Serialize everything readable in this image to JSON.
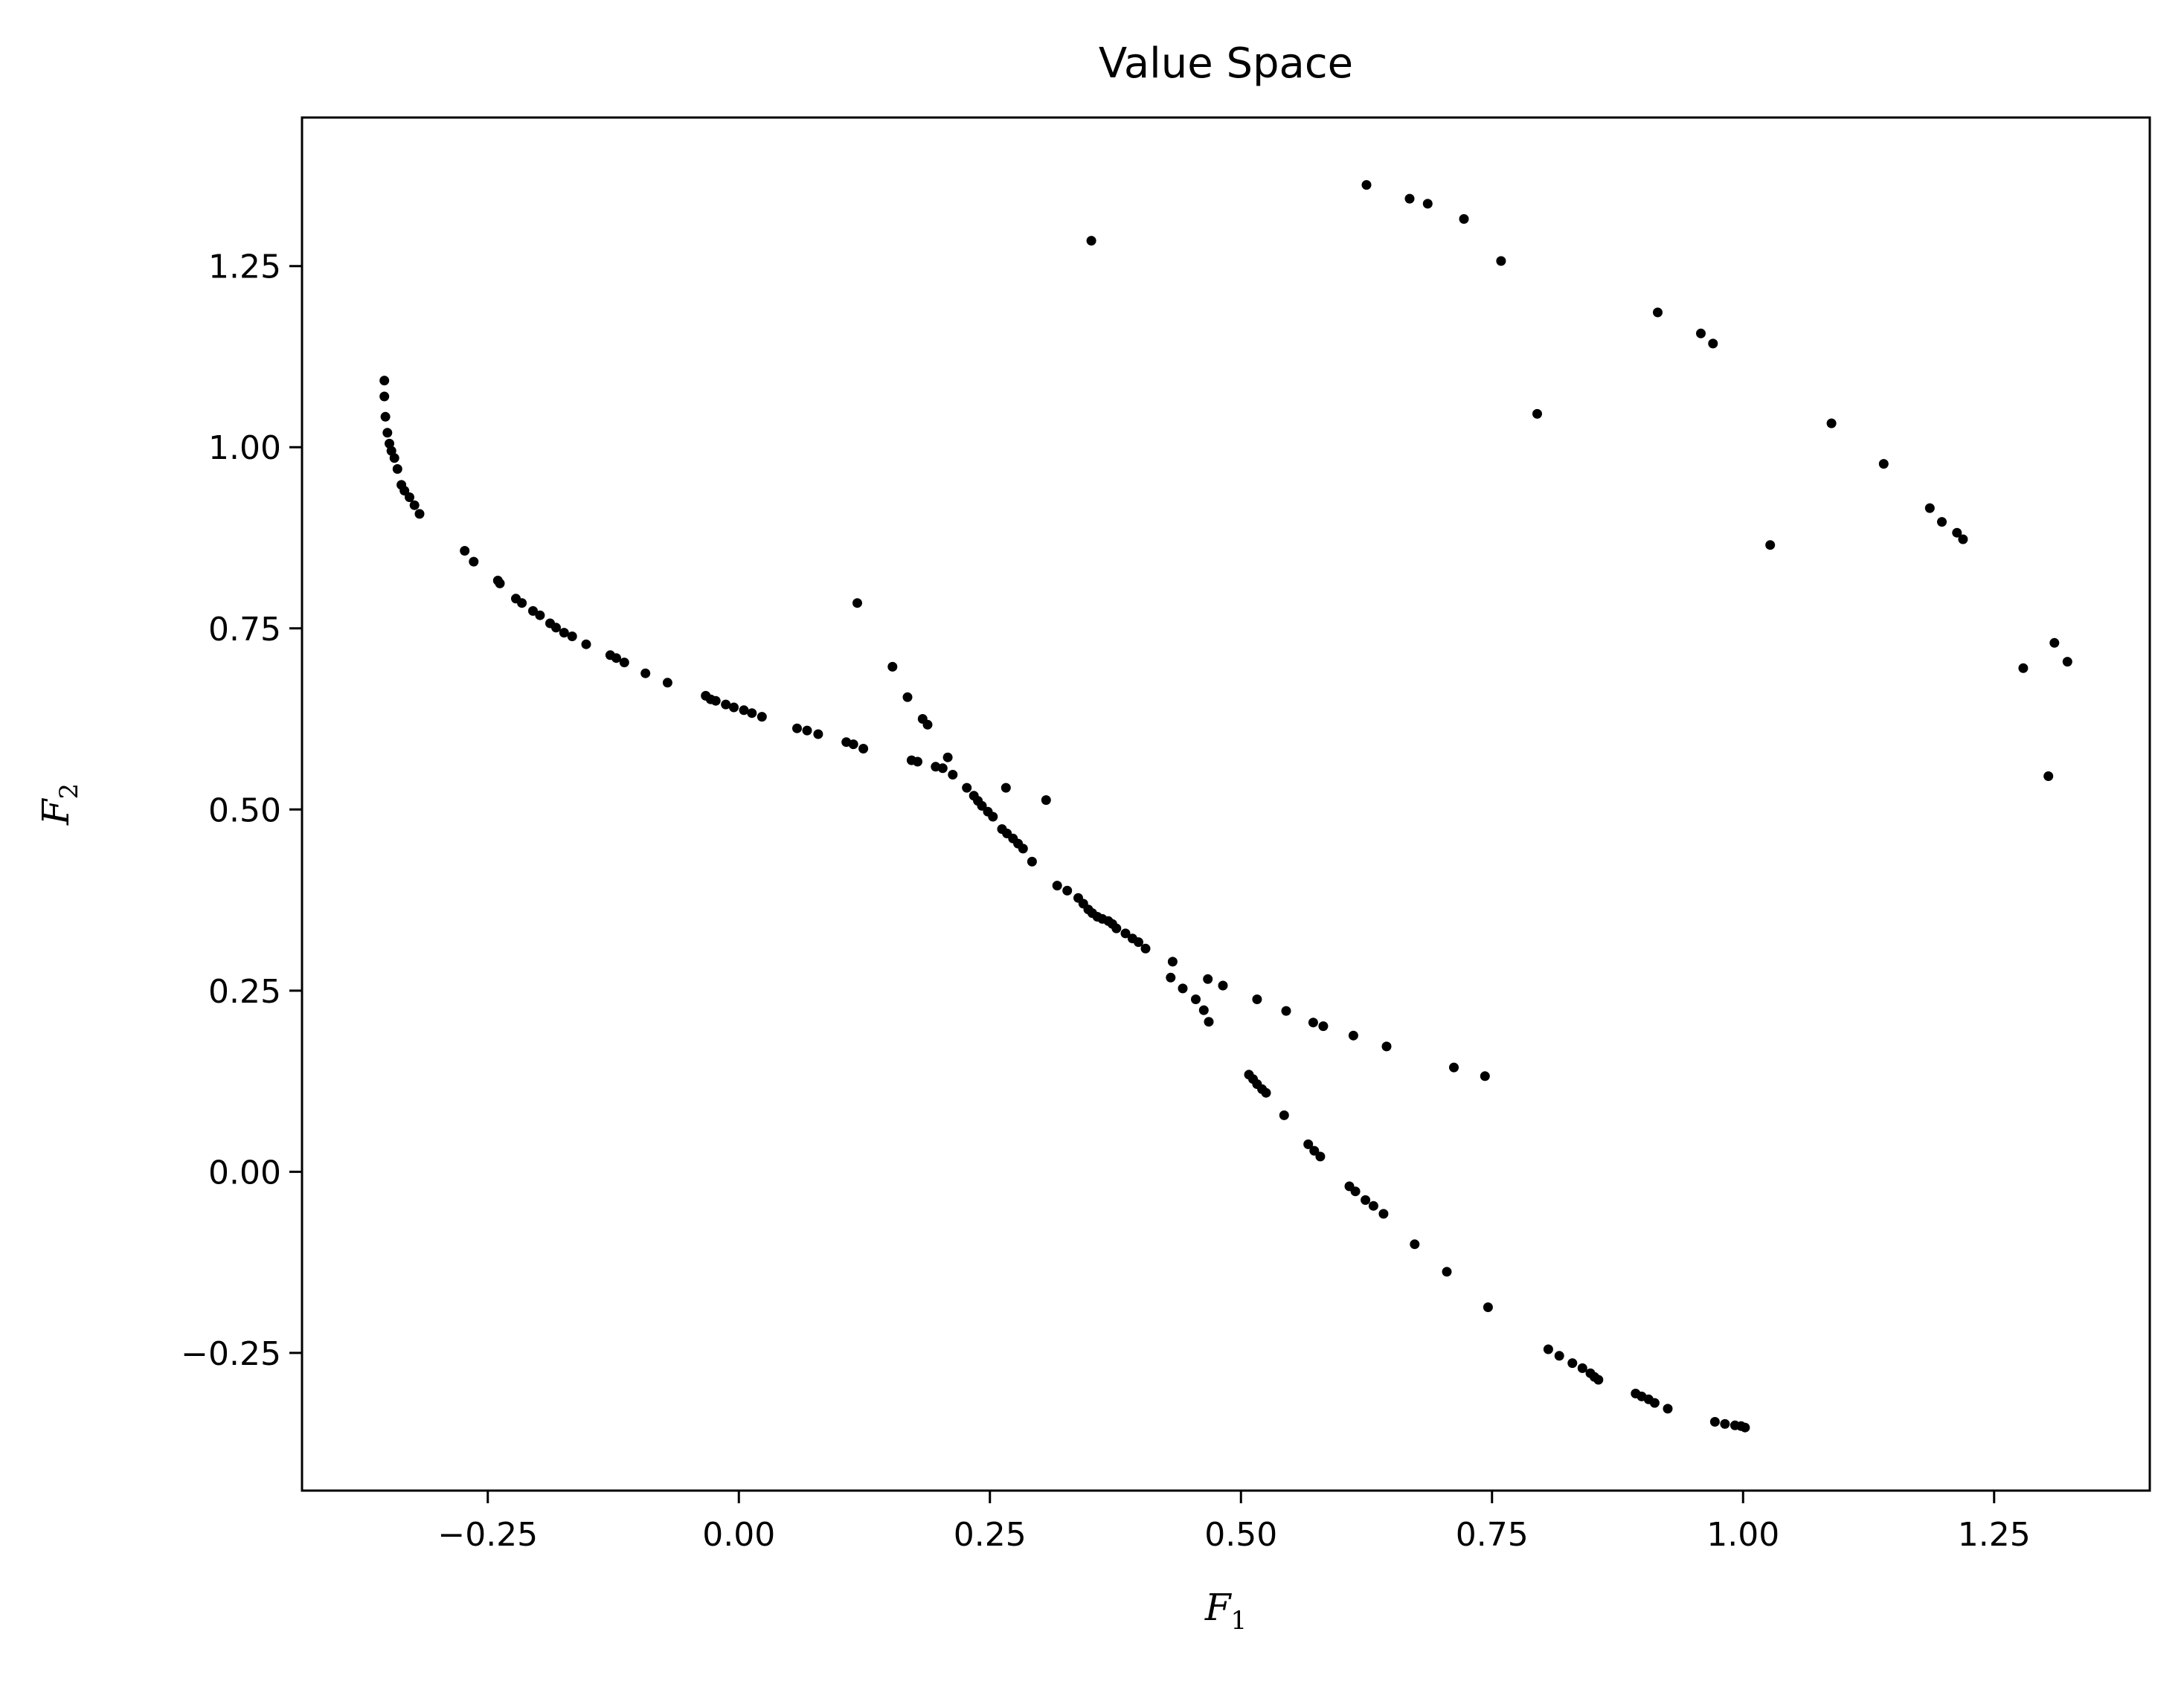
{
  "chart_data": {
    "type": "scatter",
    "title": "Value Space",
    "xlabel": "F",
    "xlabel_sub": "1",
    "ylabel": "F",
    "ylabel_sub": "2",
    "xlim": [
      -0.435,
      1.405
    ],
    "ylim": [
      -0.44,
      1.455
    ],
    "xticks": [
      -0.25,
      0.0,
      0.25,
      0.5,
      0.75,
      1.0,
      1.25
    ],
    "xtick_labels": [
      "−0.25",
      "0.00",
      "0.25",
      "0.50",
      "0.75",
      "1.00",
      "1.25"
    ],
    "yticks": [
      -0.25,
      0.0,
      0.25,
      0.5,
      0.75,
      1.0,
      1.25
    ],
    "ytick_labels": [
      "−0.25",
      "0.00",
      "0.25",
      "0.50",
      "0.75",
      "1.00",
      "1.25"
    ],
    "grid": false,
    "marker_color": "#000000",
    "points": [
      [
        -0.353,
        1.092
      ],
      [
        -0.353,
        1.07
      ],
      [
        -0.352,
        1.042
      ],
      [
        -0.35,
        1.02
      ],
      [
        -0.348,
        1.005
      ],
      [
        -0.346,
        0.995
      ],
      [
        -0.343,
        0.985
      ],
      [
        -0.34,
        0.97
      ],
      [
        -0.336,
        0.948
      ],
      [
        -0.333,
        0.94
      ],
      [
        -0.328,
        0.931
      ],
      [
        -0.323,
        0.92
      ],
      [
        -0.318,
        0.908
      ],
      [
        -0.273,
        0.857
      ],
      [
        -0.264,
        0.842
      ],
      [
        -0.24,
        0.816
      ],
      [
        -0.238,
        0.812
      ],
      [
        -0.222,
        0.791
      ],
      [
        -0.216,
        0.785
      ],
      [
        -0.205,
        0.774
      ],
      [
        -0.198,
        0.768
      ],
      [
        -0.188,
        0.757
      ],
      [
        -0.182,
        0.751
      ],
      [
        -0.174,
        0.744
      ],
      [
        -0.166,
        0.739
      ],
      [
        -0.152,
        0.728
      ],
      [
        -0.128,
        0.713
      ],
      [
        -0.122,
        0.709
      ],
      [
        -0.114,
        0.703
      ],
      [
        -0.093,
        0.688
      ],
      [
        -0.071,
        0.675
      ],
      [
        -0.033,
        0.657
      ],
      [
        -0.028,
        0.652
      ],
      [
        -0.023,
        0.65
      ],
      [
        -0.013,
        0.645
      ],
      [
        -0.005,
        0.641
      ],
      [
        0.005,
        0.637
      ],
      [
        0.013,
        0.633
      ],
      [
        0.023,
        0.628
      ],
      [
        0.058,
        0.612
      ],
      [
        0.068,
        0.609
      ],
      [
        0.079,
        0.604
      ],
      [
        0.107,
        0.593
      ],
      [
        0.114,
        0.59
      ],
      [
        0.124,
        0.584
      ],
      [
        0.118,
        0.785
      ],
      [
        0.153,
        0.697
      ],
      [
        0.168,
        0.655
      ],
      [
        0.183,
        0.625
      ],
      [
        0.188,
        0.617
      ],
      [
        0.172,
        0.568
      ],
      [
        0.178,
        0.566
      ],
      [
        0.196,
        0.559
      ],
      [
        0.203,
        0.557
      ],
      [
        0.208,
        0.572
      ],
      [
        0.213,
        0.548
      ],
      [
        0.227,
        0.53
      ],
      [
        0.234,
        0.519
      ],
      [
        0.238,
        0.512
      ],
      [
        0.242,
        0.505
      ],
      [
        0.248,
        0.497
      ],
      [
        0.253,
        0.49
      ],
      [
        0.262,
        0.473
      ],
      [
        0.266,
        0.53
      ],
      [
        0.267,
        0.467
      ],
      [
        0.273,
        0.46
      ],
      [
        0.278,
        0.453
      ],
      [
        0.283,
        0.446
      ],
      [
        0.292,
        0.428
      ],
      [
        0.306,
        0.513
      ],
      [
        0.317,
        0.395
      ],
      [
        0.327,
        0.388
      ],
      [
        0.338,
        0.378
      ],
      [
        0.343,
        0.37
      ],
      [
        0.348,
        0.362
      ],
      [
        0.352,
        0.357
      ],
      [
        0.357,
        0.352
      ],
      [
        0.362,
        0.349
      ],
      [
        0.368,
        0.346
      ],
      [
        0.372,
        0.342
      ],
      [
        0.376,
        0.336
      ],
      [
        0.385,
        0.329
      ],
      [
        0.392,
        0.322
      ],
      [
        0.398,
        0.317
      ],
      [
        0.405,
        0.308
      ],
      [
        0.432,
        0.29
      ],
      [
        0.43,
        0.268
      ],
      [
        0.442,
        0.253
      ],
      [
        0.455,
        0.238
      ],
      [
        0.463,
        0.223
      ],
      [
        0.468,
        0.207
      ],
      [
        0.467,
        0.266
      ],
      [
        0.482,
        0.257
      ],
      [
        0.508,
        0.134
      ],
      [
        0.512,
        0.128
      ],
      [
        0.516,
        0.121
      ],
      [
        0.521,
        0.114
      ],
      [
        0.525,
        0.109
      ],
      [
        0.516,
        0.238
      ],
      [
        0.545,
        0.222
      ],
      [
        0.543,
        0.078
      ],
      [
        0.567,
        0.038
      ],
      [
        0.573,
        0.029
      ],
      [
        0.579,
        0.021
      ],
      [
        0.572,
        0.206
      ],
      [
        0.582,
        0.201
      ],
      [
        0.612,
        0.188
      ],
      [
        0.608,
        -0.02
      ],
      [
        0.614,
        -0.027
      ],
      [
        0.624,
        -0.039
      ],
      [
        0.632,
        -0.047
      ],
      [
        0.642,
        -0.058
      ],
      [
        0.645,
        0.173
      ],
      [
        0.673,
        -0.1
      ],
      [
        0.705,
        -0.138
      ],
      [
        0.712,
        0.144
      ],
      [
        0.743,
        0.132
      ],
      [
        0.746,
        -0.187
      ],
      [
        0.806,
        -0.245
      ],
      [
        0.817,
        -0.254
      ],
      [
        0.83,
        -0.264
      ],
      [
        0.84,
        -0.271
      ],
      [
        0.848,
        -0.278
      ],
      [
        0.852,
        -0.283
      ],
      [
        0.856,
        -0.287
      ],
      [
        0.893,
        -0.306
      ],
      [
        0.899,
        -0.31
      ],
      [
        0.906,
        -0.314
      ],
      [
        0.912,
        -0.319
      ],
      [
        0.925,
        -0.327
      ],
      [
        0.972,
        -0.345
      ],
      [
        0.982,
        -0.348
      ],
      [
        0.992,
        -0.35
      ],
      [
        0.998,
        -0.351
      ],
      [
        1.002,
        -0.353
      ],
      [
        0.351,
        1.285
      ],
      [
        0.625,
        1.362
      ],
      [
        0.668,
        1.343
      ],
      [
        0.686,
        1.336
      ],
      [
        0.722,
        1.315
      ],
      [
        0.759,
        1.257
      ],
      [
        0.915,
        1.186
      ],
      [
        0.958,
        1.157
      ],
      [
        0.97,
        1.143
      ],
      [
        0.795,
        1.046
      ],
      [
        1.088,
        1.033
      ],
      [
        1.14,
        0.977
      ],
      [
        1.186,
        0.916
      ],
      [
        1.198,
        0.897
      ],
      [
        1.213,
        0.882
      ],
      [
        1.219,
        0.873
      ],
      [
        1.027,
        0.865
      ],
      [
        1.279,
        0.695
      ],
      [
        1.31,
        0.73
      ],
      [
        1.323,
        0.704
      ],
      [
        1.304,
        0.546
      ]
    ]
  }
}
